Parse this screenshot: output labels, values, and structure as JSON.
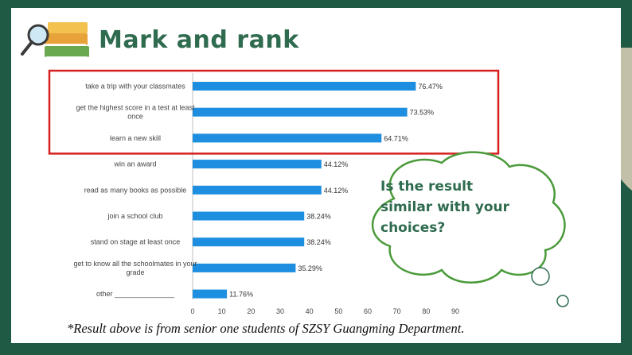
{
  "slide": {
    "title": "Mark and rank",
    "note": "*Result above is from senior one students of SZSY Guangming Department.",
    "bubble_text": "Is the result similar with your choices?"
  },
  "colors": {
    "bar": "#1e8fe0",
    "highlight_border": "#d62020",
    "title": "#2f6b4f",
    "board_green": "#1f5a44"
  },
  "icons": [
    "books-icon",
    "magnifier-icon"
  ],
  "chart_data": {
    "type": "bar",
    "orientation": "horizontal",
    "categories": [
      "take a trip with your classmates",
      "get the highest score in a test at least once",
      "learn a new skill",
      "win an award",
      "read as many books as possible",
      "join a school club",
      "stand on stage at least once",
      "get to know all the schoolmates in your grade",
      "other _______________"
    ],
    "category_lines": [
      [
        "take a trip with your classmates"
      ],
      [
        "get the highest score in a test at least",
        "once"
      ],
      [
        "learn a new skill"
      ],
      [
        "win an award"
      ],
      [
        "read as many books as possible"
      ],
      [
        "join a school club"
      ],
      [
        "stand on stage at least once"
      ],
      [
        "get to know all the schoolmates in your",
        "grade"
      ],
      [
        "other _______________"
      ]
    ],
    "values": [
      76.47,
      73.53,
      64.71,
      44.12,
      44.12,
      38.24,
      38.24,
      35.29,
      11.76
    ],
    "data_labels": [
      "76.47%",
      "73.53%",
      "64.71%",
      "44.12%",
      "44.12%",
      "38.24%",
      "38.24%",
      "35.29%",
      "11.76%"
    ],
    "xlim": [
      0,
      90
    ],
    "xticks": [
      0,
      10,
      20,
      30,
      40,
      50,
      60,
      70,
      80,
      90
    ],
    "grid": false,
    "highlighted_categories": [
      0,
      1,
      2
    ]
  }
}
